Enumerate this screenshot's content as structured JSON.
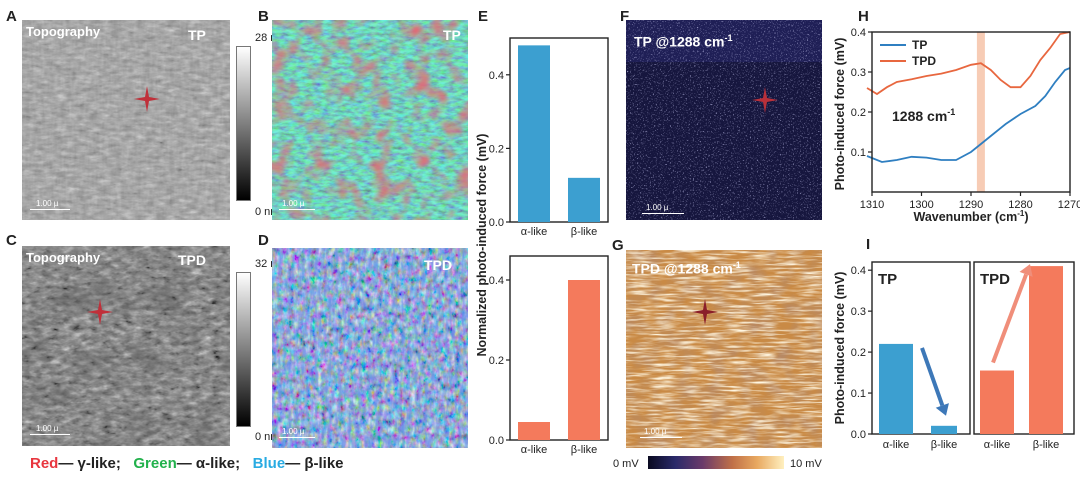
{
  "panels": {
    "A": {
      "letter": "A",
      "title": "Topography",
      "tag": "TP",
      "scale": "1.00 µ",
      "cbar_max": "28 nm",
      "cbar_min": "0 nm"
    },
    "B": {
      "letter": "B",
      "tag": "TP",
      "scale": "1.00 µ"
    },
    "C": {
      "letter": "C",
      "title": "Topography",
      "tag": "TPD",
      "scale": "1.00 µ",
      "cbar_max": "32 nm",
      "cbar_min": "0 nm"
    },
    "D": {
      "letter": "D",
      "tag": "TPD",
      "scale": "1.00 µ"
    },
    "E": {
      "letter": "E"
    },
    "F": {
      "letter": "F",
      "title": "TP @1288 cm",
      "sup": "-1",
      "scale": "1.00 µ"
    },
    "G": {
      "letter": "G",
      "title": "TPD @1288 cm",
      "sup": "-1",
      "scale": "1.00 µ",
      "cbar_min": "0 mV",
      "cbar_max": "10 mV"
    },
    "H": {
      "letter": "H"
    },
    "I": {
      "letter": "I"
    }
  },
  "legend": {
    "red_word": "Red",
    "red_label": "— γ-like;",
    "green_word": "Green",
    "green_label": "— α-like;",
    "blue_word": "Blue",
    "blue_label": "— β-like",
    "red_color": "#e8363f",
    "green_color": "#22b14c",
    "blue_color": "#29abe2"
  },
  "chart_data": [
    {
      "id": "E-top",
      "type": "bar",
      "title": "",
      "ylabel": "Normalized photo-induced force (mV)",
      "categories": [
        "α-like",
        "β-like"
      ],
      "values": [
        0.48,
        0.12
      ],
      "ylim": [
        0,
        0.5
      ],
      "yticks": [
        "0.0",
        "0.2",
        "0.4"
      ],
      "color": "#3c9fd0"
    },
    {
      "id": "E-bottom",
      "type": "bar",
      "title": "",
      "ylabel": "Normalized photo-induced force (mV)",
      "categories": [
        "α-like",
        "β-like"
      ],
      "values": [
        0.045,
        0.4
      ],
      "ylim": [
        0,
        0.46
      ],
      "yticks": [
        "0.0",
        "0.2",
        "0.4"
      ],
      "color": "#f47a5c"
    },
    {
      "id": "H",
      "type": "line",
      "xlabel": "Wavenumber (cm",
      "xlabel_sup": "-1",
      "xlabel_end": ")",
      "ylabel": "Photo-induced force (mV)",
      "xlim": [
        1310,
        1270
      ],
      "ylim": [
        0,
        0.4
      ],
      "xticks": [
        "1310",
        "1300",
        "1290",
        "1280",
        "1270"
      ],
      "yticks": [
        "0.1",
        "0.2",
        "0.3",
        "0.4"
      ],
      "annotation": "1288 cm",
      "annotation_sup": "-1",
      "highlight_x": 1288,
      "series": [
        {
          "name": "TP",
          "color": "#2f7fc1",
          "x": [
            1311,
            1308,
            1305,
            1302,
            1299,
            1296,
            1293,
            1290,
            1288,
            1286,
            1283,
            1280,
            1277,
            1275,
            1273,
            1271,
            1270
          ],
          "y": [
            0.09,
            0.075,
            0.08,
            0.088,
            0.086,
            0.08,
            0.08,
            0.1,
            0.12,
            0.14,
            0.17,
            0.195,
            0.215,
            0.24,
            0.275,
            0.305,
            0.31
          ]
        },
        {
          "name": "TPD",
          "color": "#e8673f",
          "x": [
            1311,
            1309,
            1307,
            1305,
            1302,
            1299,
            1296,
            1293,
            1290,
            1288,
            1286,
            1284,
            1282,
            1280,
            1278,
            1276,
            1274,
            1272,
            1270
          ],
          "y": [
            0.26,
            0.245,
            0.262,
            0.275,
            0.282,
            0.29,
            0.296,
            0.305,
            0.318,
            0.322,
            0.305,
            0.28,
            0.262,
            0.262,
            0.29,
            0.33,
            0.36,
            0.395,
            0.42
          ]
        }
      ]
    },
    {
      "id": "I",
      "type": "bar",
      "ylabel": "Photo-induced force (mV)",
      "ylim": [
        0,
        0.42
      ],
      "yticks": [
        "0.0",
        "0.1",
        "0.2",
        "0.3",
        "0.4"
      ],
      "groups": [
        {
          "name": "TP",
          "categories": [
            "α-like",
            "β-like"
          ],
          "values": [
            0.22,
            0.02
          ],
          "color": "#3c9fd0",
          "arrow_color": "#3d78b8"
        },
        {
          "name": "TPD",
          "categories": [
            "α-like",
            "β-like"
          ],
          "values": [
            0.155,
            0.41
          ],
          "color": "#f47a5c",
          "arrow_color": "#f08e7a"
        }
      ]
    }
  ]
}
